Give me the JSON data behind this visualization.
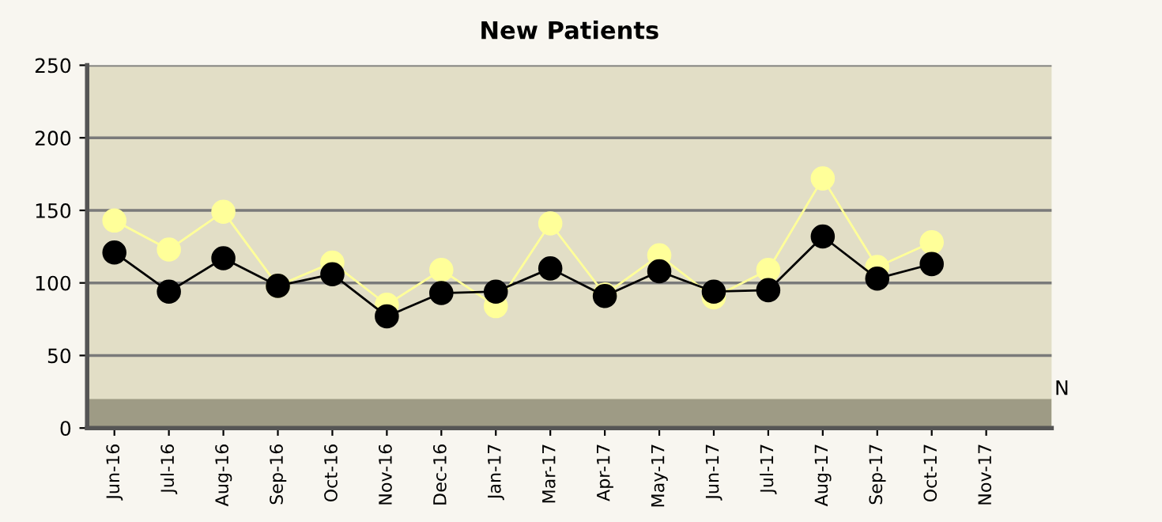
{
  "chart_data": {
    "type": "line",
    "title": "New Patients",
    "categories": [
      "Jun-16",
      "Jul-16",
      "Aug-16",
      "Sep-16",
      "Oct-16",
      "Nov-16",
      "Dec-16",
      "Jan-17",
      "Mar-17",
      "Apr-17",
      "May-17",
      "Jun-17",
      "Jul-17",
      "Aug-17",
      "Sep-17",
      "Oct-17",
      "Nov-17"
    ],
    "series": [
      {
        "color": "#ffff99",
        "values": [
          143,
          123,
          149,
          98,
          114,
          85,
          109,
          84,
          141,
          92,
          119,
          90,
          109,
          172,
          111,
          128,
          null
        ]
      },
      {
        "color": "#000000",
        "values": [
          121,
          94,
          117,
          98,
          106,
          77,
          93,
          94,
          110,
          91,
          108,
          94,
          95,
          132,
          103,
          113,
          null
        ]
      }
    ],
    "ylim": [
      0,
      250
    ],
    "yticks": [
      0,
      50,
      100,
      150,
      200,
      250
    ],
    "grid": "y",
    "marker": "circle",
    "line_style": "solid",
    "bands": [
      {
        "axis": "y",
        "from": 0,
        "to": 20,
        "label": "N",
        "color": "#9e9b85"
      }
    ]
  }
}
